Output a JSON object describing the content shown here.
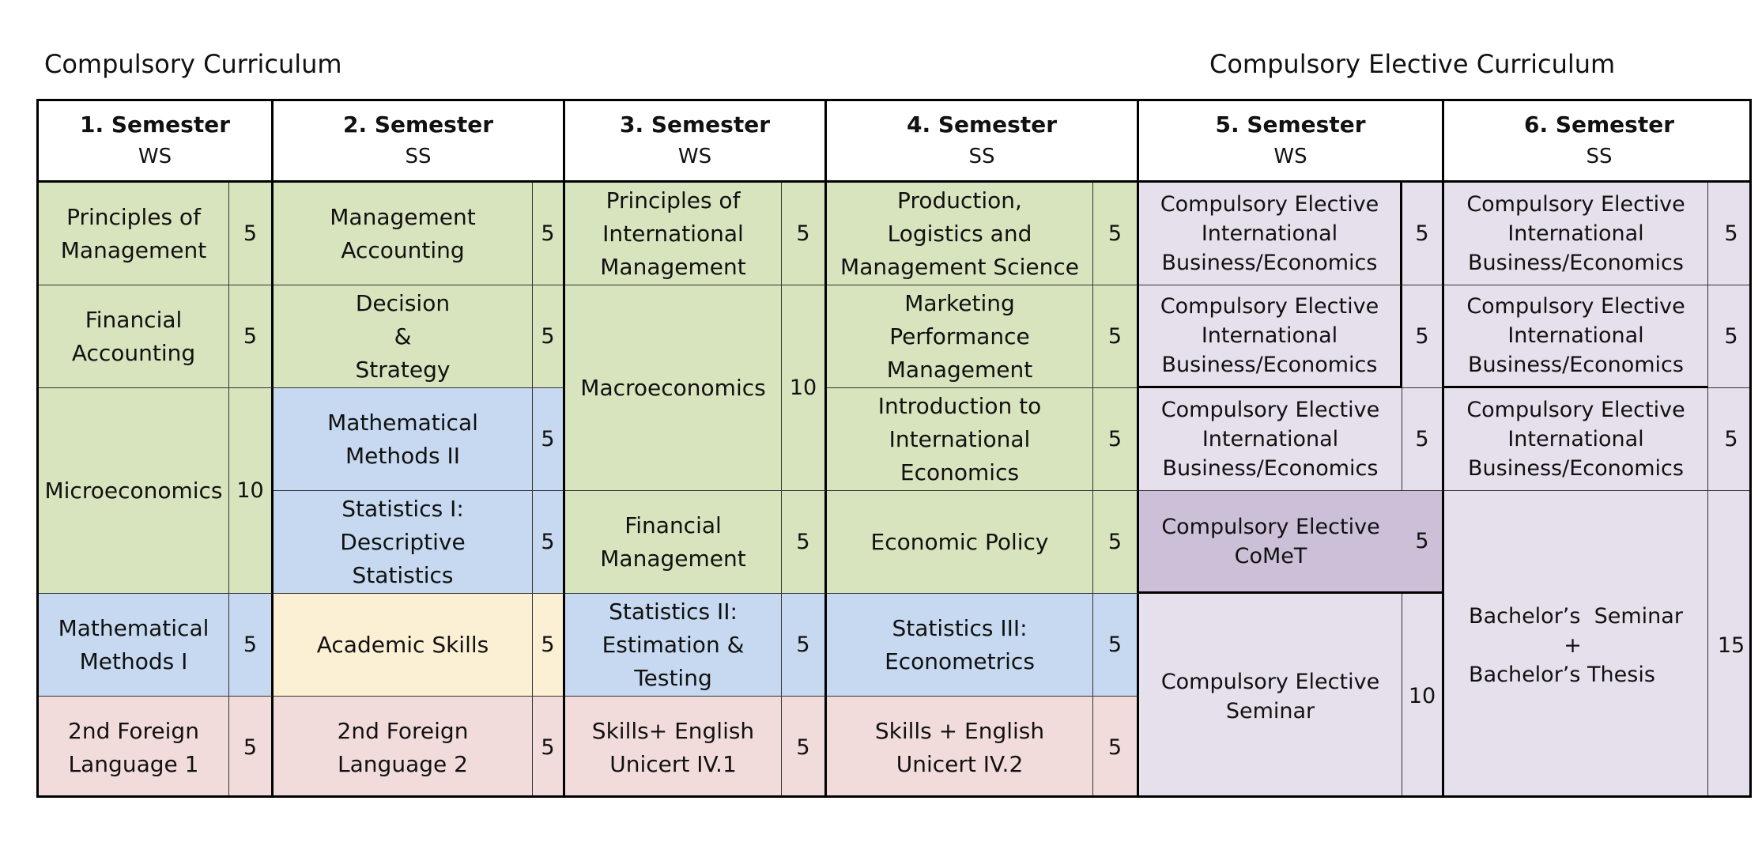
{
  "headings": {
    "left": "Compulsory Curriculum",
    "right": "Compulsory Elective Curriculum"
  },
  "colors": {
    "green": "#d7e4bd",
    "blue": "#c6d9f0",
    "yellow": "#fbf0d3",
    "pink": "#f2dcdb",
    "lavender": "#e5e0ec",
    "purple": "#ccc0d9"
  },
  "semesters": [
    {
      "title": "1. Semester",
      "term": "WS"
    },
    {
      "title": "2. Semester",
      "term": "SS"
    },
    {
      "title": "3. Semester",
      "term": "WS"
    },
    {
      "title": "4. Semester",
      "term": "SS"
    },
    {
      "title": "5. Semester",
      "term": "WS"
    },
    {
      "title": "6. Semester",
      "term": "SS"
    }
  ],
  "modules": {
    "s1": [
      {
        "name": "Principles of\nManagement",
        "credits": "5"
      },
      {
        "name": "Financial\nAccounting",
        "credits": "5"
      },
      {
        "name": "Microeconomics",
        "credits": "10"
      },
      {
        "name": "Mathematical\nMethods I",
        "credits": "5"
      },
      {
        "name": "2nd Foreign\nLanguage 1",
        "credits": "5"
      }
    ],
    "s2": [
      {
        "name": "Management\nAccounting",
        "credits": "5"
      },
      {
        "name": "Decision\n&\nStrategy",
        "credits": "5"
      },
      {
        "name": "Mathematical\nMethods II",
        "credits": "5"
      },
      {
        "name": "Statistics I:\nDescriptive\nStatistics",
        "credits": "5"
      },
      {
        "name": "Academic Skills",
        "credits": "5"
      },
      {
        "name": "2nd Foreign\nLanguage 2",
        "credits": "5"
      }
    ],
    "s3": [
      {
        "name": "Principles of\nInternational\nManagement",
        "credits": "5"
      },
      {
        "name": "Macroeconomics",
        "credits": "10"
      },
      {
        "name": "Financial\nManagement",
        "credits": "5"
      },
      {
        "name": "Statistics II:\nEstimation &\nTesting",
        "credits": "5"
      },
      {
        "name": "Skills+ English\nUnicert IV.1",
        "credits": "5"
      }
    ],
    "s4": [
      {
        "name": "Production,\nLogistics and\nManagement Science",
        "credits": "5"
      },
      {
        "name": "Marketing\nPerformance\nManagement",
        "credits": "5"
      },
      {
        "name": "Introduction to\nInternational\nEconomics",
        "credits": "5"
      },
      {
        "name": "Economic Policy",
        "credits": "5"
      },
      {
        "name": "Statistics III:\nEconometrics",
        "credits": "5"
      },
      {
        "name": "Skills + English\nUnicert IV.2",
        "credits": "5"
      }
    ],
    "s5": [
      {
        "name": "Compulsory Elective\nInternational\nBusiness/Economics",
        "credits": "5"
      },
      {
        "name": "Compulsory Elective\nInternational\nBusiness/Economics",
        "credits": "5"
      },
      {
        "name": "Compulsory Elective\nInternational\nBusiness/Economics",
        "credits": "5"
      },
      {
        "name": "Compulsory Elective\nCoMeT",
        "credits": "5"
      },
      {
        "name": "Compulsory Elective\nSeminar",
        "credits": "10"
      }
    ],
    "s6": [
      {
        "name": "Compulsory Elective\nInternational\nBusiness/Economics",
        "credits": "5"
      },
      {
        "name": "Compulsory Elective\nInternational\nBusiness/Economics",
        "credits": "5"
      },
      {
        "name": "Compulsory Elective\nInternational\nBusiness/Economics",
        "credits": "5"
      },
      {
        "name": "Bachelor’s  Seminar\n              +\nBachelor’s Thesis",
        "credits": "15"
      }
    ]
  }
}
